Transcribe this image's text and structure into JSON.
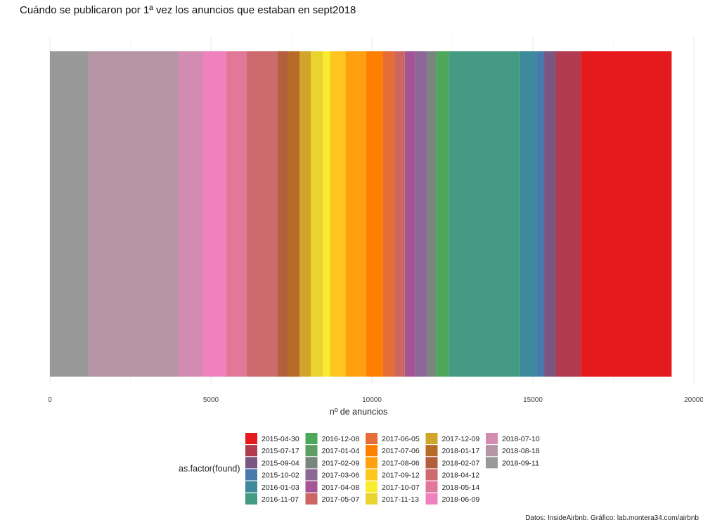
{
  "chart_data": {
    "type": "bar",
    "orientation": "horizontal-stacked",
    "title": "Cuándo se publicaron por 1ª vez los anuncios que estaban en sept2018",
    "xlabel": "nº de anuncios",
    "ylabel": "",
    "xlim": [
      0,
      20000
    ],
    "x_ticks": [
      0,
      5000,
      10000,
      15000,
      20000
    ],
    "x_tick_labels": [
      "0",
      "5000",
      "10000",
      "15000",
      "20000"
    ],
    "grid": true,
    "legend": {
      "title": "as.factor(found)",
      "position": "bottom",
      "columns": 5
    },
    "caption": "Datos: InsideAirbnb. Gráfico: lab.montera34.com/airbnb",
    "stack_order": "bottom-to-top from right: earliest date at right end",
    "series": [
      {
        "name": "2015-04-30",
        "value": 2820,
        "color": "#E41A1C"
      },
      {
        "name": "2015-07-17",
        "value": 780,
        "color": "#B03A4E"
      },
      {
        "name": "2015-09-04",
        "value": 360,
        "color": "#7B5683"
      },
      {
        "name": "2015-10-02",
        "value": 220,
        "color": "#4A79AE"
      },
      {
        "name": "2016-01-03",
        "value": 530,
        "color": "#3E8A9C"
      },
      {
        "name": "2016-11-07",
        "value": 2200,
        "color": "#449A82"
      },
      {
        "name": "2016-12-08",
        "value": 400,
        "color": "#4DA85B"
      },
      {
        "name": "2017-01-04",
        "value": 0,
        "color": "#5E9E63"
      },
      {
        "name": "2017-02-09",
        "value": 280,
        "color": "#77867F"
      },
      {
        "name": "2017-03-06",
        "value": 380,
        "color": "#8D6796"
      },
      {
        "name": "2017-04-08",
        "value": 320,
        "color": "#A35596"
      },
      {
        "name": "2017-05-07",
        "value": 300,
        "color": "#CC6664"
      },
      {
        "name": "2017-06-05",
        "value": 380,
        "color": "#E56E38"
      },
      {
        "name": "2017-07-06",
        "value": 520,
        "color": "#FE7F00"
      },
      {
        "name": "2017-08-06",
        "value": 640,
        "color": "#FFA10F"
      },
      {
        "name": "2017-09-12",
        "value": 480,
        "color": "#FFC620"
      },
      {
        "name": "2017-10-07",
        "value": 220,
        "color": "#F9EC2E"
      },
      {
        "name": "2017-11-13",
        "value": 380,
        "color": "#E8D32F"
      },
      {
        "name": "2017-12-09",
        "value": 350,
        "color": "#D1A42C"
      },
      {
        "name": "2018-01-17",
        "value": 360,
        "color": "#B66C28"
      },
      {
        "name": "2018-02-07",
        "value": 330,
        "color": "#B35E3C"
      },
      {
        "name": "2018-04-12",
        "value": 960,
        "color": "#CD6A6E"
      },
      {
        "name": "2018-05-14",
        "value": 620,
        "color": "#E3779A"
      },
      {
        "name": "2018-06-09",
        "value": 720,
        "color": "#EF82BE"
      },
      {
        "name": "2018-07-10",
        "value": 760,
        "color": "#D48BB2"
      },
      {
        "name": "2018-08-18",
        "value": 2800,
        "color": "#B594A4"
      },
      {
        "name": "2018-09-11",
        "value": 1200,
        "color": "#999999"
      }
    ]
  }
}
